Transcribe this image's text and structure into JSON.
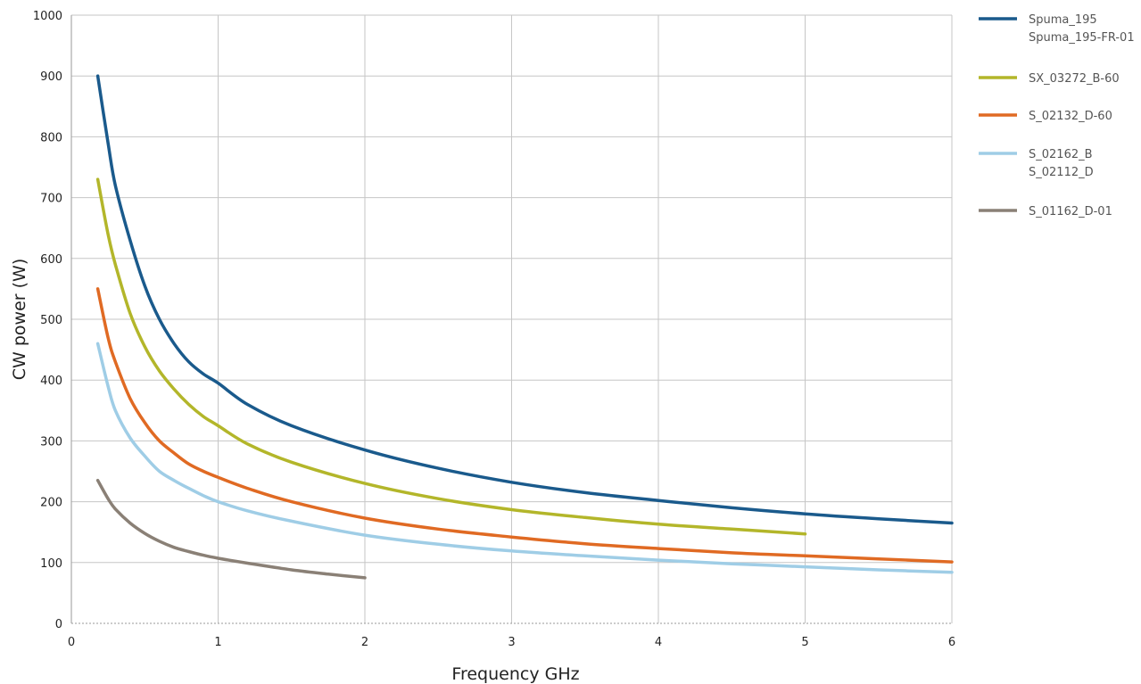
{
  "chart_data": {
    "type": "line",
    "title": "",
    "xlabel": "Frequency GHz",
    "ylabel": "CW power (W)",
    "xlim": [
      0,
      6
    ],
    "ylim": [
      0,
      1000
    ],
    "x_ticks": [
      "0",
      "1",
      "2",
      "3",
      "4",
      "5",
      "6"
    ],
    "y_ticks": [
      "0",
      "100",
      "200",
      "300",
      "400",
      "500",
      "600",
      "700",
      "800",
      "900",
      "1000"
    ],
    "grid": true,
    "legend_position": "right",
    "series": [
      {
        "name": "Spuma_195",
        "name_line2": "Spuma_195-FR-01",
        "color": "#1a5a8c",
        "points": [
          [
            0.18,
            900
          ],
          [
            0.25,
            790
          ],
          [
            0.3,
            720
          ],
          [
            0.4,
            630
          ],
          [
            0.5,
            555
          ],
          [
            0.6,
            500
          ],
          [
            0.7,
            460
          ],
          [
            0.8,
            430
          ],
          [
            0.9,
            410
          ],
          [
            1.0,
            395
          ],
          [
            1.2,
            360
          ],
          [
            1.5,
            325
          ],
          [
            2.0,
            285
          ],
          [
            2.5,
            255
          ],
          [
            3.0,
            232
          ],
          [
            3.5,
            215
          ],
          [
            4.0,
            202
          ],
          [
            4.5,
            190
          ],
          [
            5.0,
            180
          ],
          [
            5.5,
            172
          ],
          [
            6.0,
            165
          ]
        ]
      },
      {
        "name": "SX_03272_B-60",
        "color": "#b3b62a",
        "points": [
          [
            0.18,
            730
          ],
          [
            0.25,
            640
          ],
          [
            0.3,
            590
          ],
          [
            0.4,
            510
          ],
          [
            0.5,
            455
          ],
          [
            0.6,
            415
          ],
          [
            0.7,
            385
          ],
          [
            0.8,
            360
          ],
          [
            0.9,
            340
          ],
          [
            1.0,
            325
          ],
          [
            1.2,
            295
          ],
          [
            1.5,
            265
          ],
          [
            2.0,
            230
          ],
          [
            2.5,
            205
          ],
          [
            3.0,
            187
          ],
          [
            3.5,
            174
          ],
          [
            4.0,
            163
          ],
          [
            4.5,
            155
          ],
          [
            5.0,
            147
          ]
        ]
      },
      {
        "name": "S_02132_D-60",
        "color": "#e06a23",
        "points": [
          [
            0.18,
            550
          ],
          [
            0.25,
            470
          ],
          [
            0.3,
            430
          ],
          [
            0.4,
            370
          ],
          [
            0.5,
            330
          ],
          [
            0.6,
            300
          ],
          [
            0.7,
            280
          ],
          [
            0.8,
            262
          ],
          [
            0.9,
            250
          ],
          [
            1.0,
            240
          ],
          [
            1.2,
            222
          ],
          [
            1.5,
            200
          ],
          [
            2.0,
            173
          ],
          [
            2.5,
            155
          ],
          [
            3.0,
            142
          ],
          [
            3.5,
            131
          ],
          [
            4.0,
            123
          ],
          [
            4.5,
            116
          ],
          [
            5.0,
            111
          ],
          [
            5.5,
            106
          ],
          [
            6.0,
            101
          ]
        ]
      },
      {
        "name": "S_02162_B",
        "name_line2": "S_02112_D",
        "color": "#9fcde6",
        "points": [
          [
            0.18,
            460
          ],
          [
            0.25,
            390
          ],
          [
            0.3,
            350
          ],
          [
            0.4,
            305
          ],
          [
            0.5,
            275
          ],
          [
            0.6,
            250
          ],
          [
            0.7,
            235
          ],
          [
            0.8,
            222
          ],
          [
            0.9,
            210
          ],
          [
            1.0,
            200
          ],
          [
            1.2,
            185
          ],
          [
            1.5,
            168
          ],
          [
            2.0,
            145
          ],
          [
            2.5,
            130
          ],
          [
            3.0,
            119
          ],
          [
            3.5,
            111
          ],
          [
            4.0,
            104
          ],
          [
            4.5,
            98
          ],
          [
            5.0,
            93
          ],
          [
            5.5,
            88
          ],
          [
            6.0,
            84
          ]
        ]
      },
      {
        "name": "S_01162_D-01",
        "color": "#8a8076",
        "points": [
          [
            0.18,
            235
          ],
          [
            0.25,
            205
          ],
          [
            0.3,
            188
          ],
          [
            0.4,
            165
          ],
          [
            0.5,
            148
          ],
          [
            0.6,
            135
          ],
          [
            0.7,
            125
          ],
          [
            0.8,
            118
          ],
          [
            0.9,
            112
          ],
          [
            1.0,
            107
          ],
          [
            1.2,
            99
          ],
          [
            1.5,
            88
          ],
          [
            1.75,
            81
          ],
          [
            2.0,
            75
          ]
        ]
      }
    ]
  }
}
